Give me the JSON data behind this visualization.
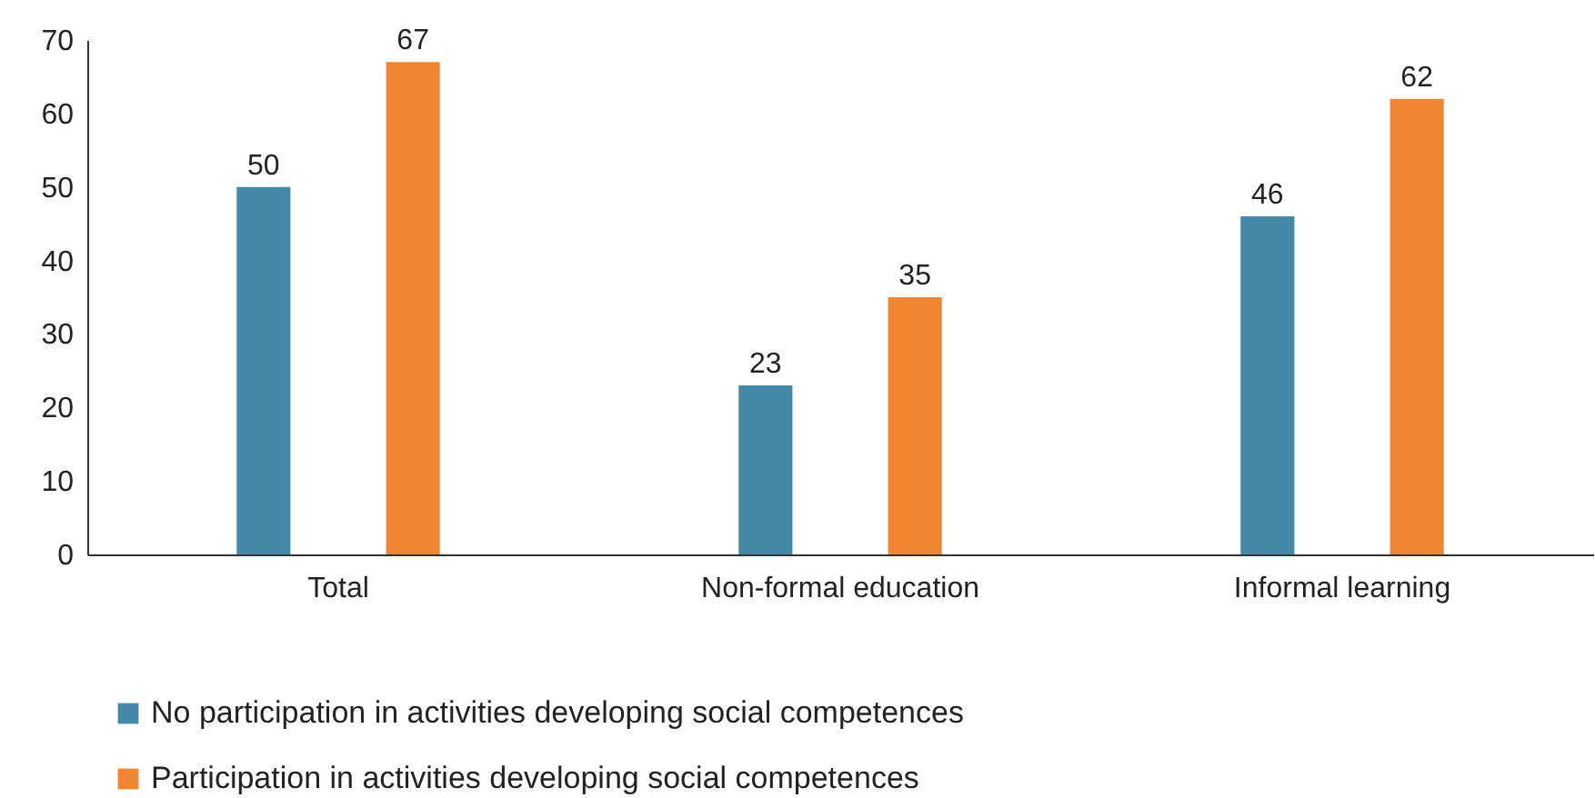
{
  "chart_data": {
    "type": "bar",
    "categories": [
      "Total",
      "Non-formal education",
      "Informal learning"
    ],
    "series": [
      {
        "name": "No participation in activities developing social competences",
        "color": "#4589a8",
        "values": [
          50,
          23,
          46
        ]
      },
      {
        "name": "Participation in activities developing social competences",
        "color": "#f08532",
        "values": [
          67,
          35,
          62
        ]
      }
    ],
    "ylim": [
      0,
      70
    ],
    "yticks": [
      0,
      10,
      20,
      30,
      40,
      50,
      60,
      70
    ],
    "data_labels": true,
    "legend": "bottom"
  }
}
